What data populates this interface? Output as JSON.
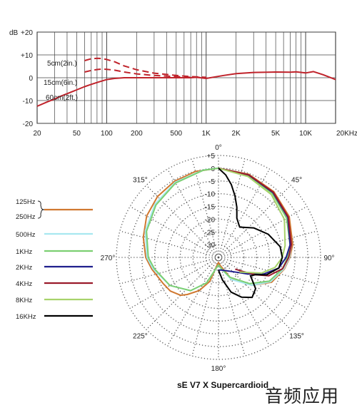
{
  "chart_data": [
    {
      "type": "line",
      "ylabel": "dB",
      "ylim": [
        -20,
        20
      ],
      "y_ticks": [
        "+20",
        "+10",
        "0",
        "-10",
        "-20"
      ],
      "xlim": [
        20,
        20000
      ],
      "x_scale": "log",
      "x_ticks": [
        {
          "v": 20,
          "label": "20"
        },
        {
          "v": 50,
          "label": "50"
        },
        {
          "v": 100,
          "label": "100"
        },
        {
          "v": 200,
          "label": "200"
        },
        {
          "v": 500,
          "label": "500"
        },
        {
          "v": 1000,
          "label": "1K"
        },
        {
          "v": 2000,
          "label": "2K"
        },
        {
          "v": 5000,
          "label": "5K"
        },
        {
          "v": 10000,
          "label": "10K"
        },
        {
          "v": 20000,
          "label": "20KHz"
        }
      ],
      "grid": true,
      "series": [
        {
          "name": "5cm(2in.)",
          "style": "dashed",
          "color": "#c0232b",
          "x": [
            60,
            70,
            80,
            90,
            100,
            120,
            150,
            200,
            300,
            500,
            700,
            1000
          ],
          "y": [
            7.5,
            8.3,
            8.5,
            8.4,
            8.0,
            7.0,
            5.2,
            3.5,
            2.0,
            1.0,
            0.5,
            0.2
          ]
        },
        {
          "name": "15cm(6in.)",
          "style": "dashed",
          "color": "#c0232b",
          "x": [
            60,
            70,
            80,
            90,
            100,
            120,
            150,
            200,
            300,
            500,
            700,
            1000
          ],
          "y": [
            2.5,
            3.2,
            3.6,
            3.8,
            3.7,
            3.3,
            2.5,
            1.7,
            1.0,
            0.5,
            0.2,
            0.1
          ]
        },
        {
          "name": "60cm(2ft.)",
          "style": "solid",
          "color": "#c0232b",
          "x": [
            20,
            25,
            30,
            35,
            40,
            50,
            60,
            70,
            80,
            100,
            120,
            150,
            200,
            300,
            500,
            700,
            800,
            1000,
            1500,
            2000,
            3000,
            5000,
            7000,
            8000,
            10000,
            12000,
            15000,
            20000
          ],
          "y": [
            -12.5,
            -10.7,
            -9.3,
            -8.0,
            -7.0,
            -5.3,
            -3.9,
            -2.9,
            -2.1,
            -0.8,
            -0.3,
            0,
            0,
            0,
            0,
            0,
            0.2,
            -0.3,
            1.0,
            1.8,
            2.3,
            2.5,
            2.4,
            2.6,
            2.1,
            2.7,
            1.3,
            -0.8
          ]
        }
      ]
    },
    {
      "type": "polar",
      "title": "sE V7 X  Supercardioid",
      "angle_labels": [
        {
          "deg": 0,
          "label": "0°"
        },
        {
          "deg": 45,
          "label": "45°"
        },
        {
          "deg": 90,
          "label": "90°"
        },
        {
          "deg": 135,
          "label": "135°"
        },
        {
          "deg": 180,
          "label": "180°"
        },
        {
          "deg": 225,
          "label": "225°"
        },
        {
          "deg": 270,
          "label": "270°"
        },
        {
          "deg": 315,
          "label": "315°"
        }
      ],
      "radial_ticks": [
        "+5",
        "0",
        "-5",
        "-10",
        "-15",
        "-20",
        "-25",
        "-30"
      ],
      "rlim": [
        -35,
        5
      ],
      "legend_position": "left",
      "series": [
        {
          "name": "125Hz\n250Hz",
          "color": "#d07830",
          "deg": [
            0,
            20,
            40,
            60,
            80,
            90,
            100,
            115,
            130,
            150,
            170,
            180,
            190,
            200,
            210,
            220,
            225,
            235,
            245,
            260,
            270,
            285,
            300,
            315,
            330,
            345,
            360
          ],
          "db": [
            0,
            -0.3,
            -1.3,
            -3,
            -5.5,
            -7,
            -8.8,
            -12,
            -18,
            -26,
            -32,
            -33,
            -32,
            -25,
            -20,
            -16,
            -14,
            -12,
            -11,
            -8.5,
            -6.5,
            -4.5,
            -2.5,
            -1.2,
            -0.5,
            -0.1,
            0
          ]
        },
        {
          "name": "500Hz",
          "color": "#a8e8f0",
          "deg": [
            0,
            20,
            40,
            60,
            80,
            90,
            100,
            115,
            130,
            150,
            170,
            180,
            190,
            205,
            220,
            240,
            260,
            270,
            290,
            310,
            330,
            350,
            360
          ],
          "db": [
            0,
            -0.5,
            -1.8,
            -3.6,
            -6,
            -7.2,
            -9,
            -12.5,
            -18,
            -25,
            -31,
            -32,
            -31,
            -24,
            -18,
            -13,
            -9,
            -7,
            -4.5,
            -2.5,
            -1,
            -0.2,
            0
          ]
        },
        {
          "name": "1KHz",
          "color": "#7ccf72",
          "deg": [
            0,
            20,
            40,
            60,
            80,
            90,
            100,
            115,
            130,
            150,
            170,
            180,
            190,
            205,
            220,
            240,
            260,
            270,
            290,
            310,
            330,
            350,
            360
          ],
          "db": [
            0,
            -0.8,
            -2.2,
            -4.2,
            -6.5,
            -8,
            -9.5,
            -13,
            -19,
            -26,
            -31,
            -32,
            -31,
            -24,
            -18,
            -13,
            -9.5,
            -7.5,
            -5,
            -3,
            -1.3,
            -0.3,
            0
          ]
        },
        {
          "name": "2KHz",
          "color": "#1e1e8c",
          "deg": [
            0,
            20,
            40,
            60,
            80,
            90,
            100,
            110,
            120,
            130,
            150,
            170,
            180
          ],
          "db": [
            0,
            -0.6,
            -1.8,
            -3.6,
            -6.5,
            -8.5,
            -11,
            -16,
            -22,
            -26,
            -29,
            -30,
            -30
          ]
        },
        {
          "name": "4KHz",
          "color": "#9a1a2a",
          "deg": [
            0,
            20,
            40,
            60,
            80,
            90,
            100,
            110,
            115,
            120,
            125
          ],
          "db": [
            0,
            -0.5,
            -1.6,
            -3.4,
            -6,
            -7.5,
            -9.5,
            -14,
            -19,
            -24,
            -27
          ]
        },
        {
          "name": "8KHz",
          "color": "#a8d36a",
          "deg": [
            0,
            20,
            40,
            60,
            80,
            90,
            100,
            110,
            125
          ],
          "db": [
            0,
            -1.2,
            -2.8,
            -5.2,
            -8.5,
            -10,
            -12.5,
            -17,
            -25
          ]
        },
        {
          "name": "16KHz",
          "color": "#000000",
          "deg": [
            0,
            5,
            10,
            15,
            20,
            25,
            35,
            50,
            65,
            80,
            90,
            100,
            110,
            115,
            120,
            130,
            140,
            150,
            160,
            170,
            180
          ],
          "db": [
            0,
            -2.5,
            -6,
            -10,
            -14,
            -18,
            -20.5,
            -17,
            -13.5,
            -10.5,
            -10,
            -11,
            -15,
            -19,
            -20.5,
            -16,
            -14.5,
            -17,
            -20.5,
            -26,
            -30
          ]
        }
      ]
    }
  ],
  "labels": {
    "curve_5cm": "5cm(2in.)",
    "curve_15cm": "15cm(6in.)",
    "curve_60cm": "60cm(2ft.)",
    "caption": "sE V7 X  Supercardioid",
    "watermark": "音频应用"
  }
}
